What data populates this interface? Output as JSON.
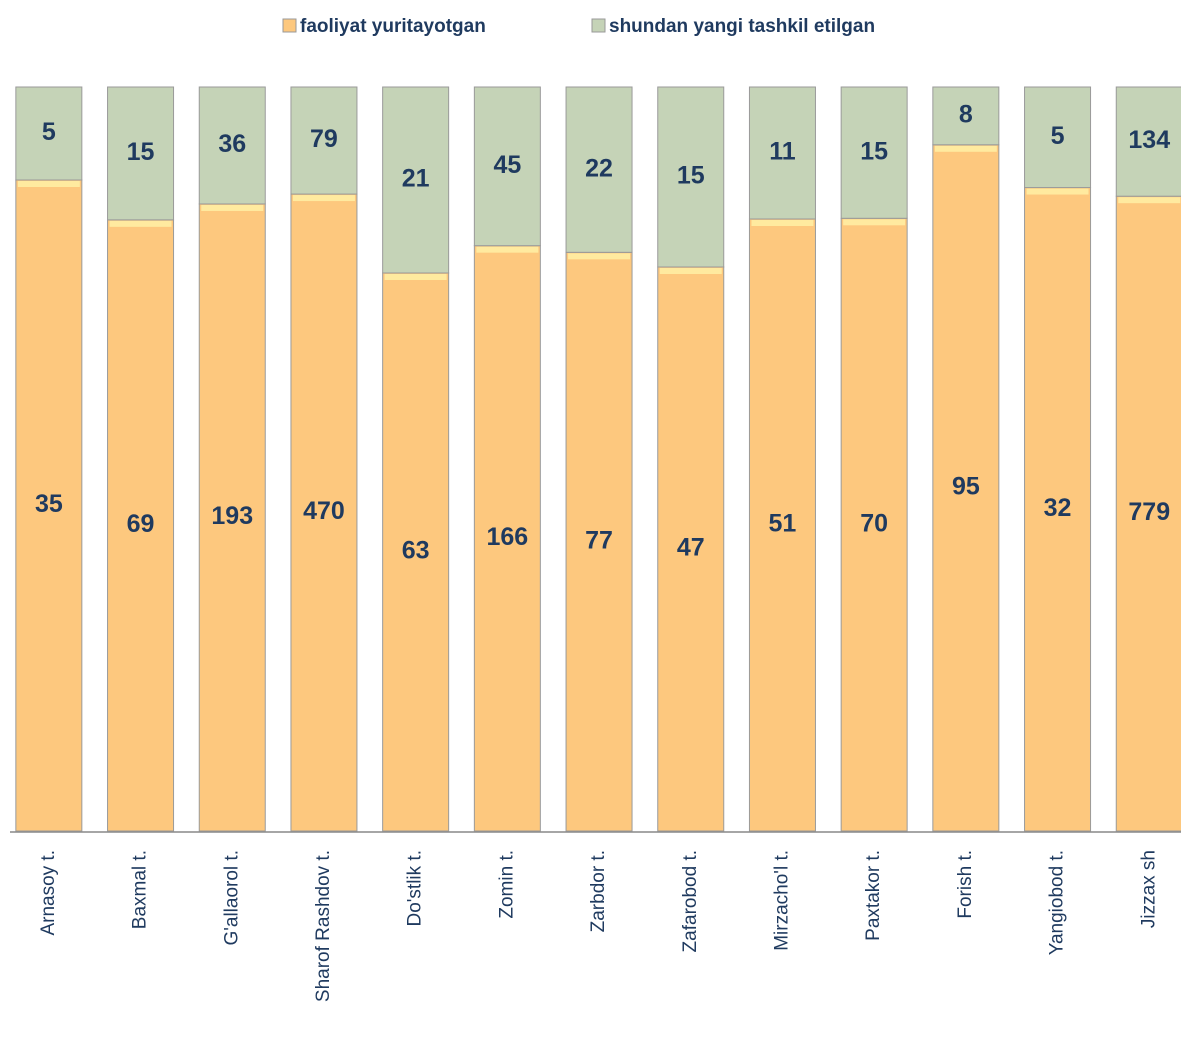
{
  "chart_data": {
    "type": "bar",
    "stacked": "percent",
    "categories": [
      "Arnasoy t.",
      "Baxmal t.",
      "G'allaorol t.",
      "Sharof Rashdov  t.",
      "Do'stlik t.",
      "Zomin t.",
      "Zarbdor t.",
      "Zafarobod t.",
      "Mirzacho'l t.",
      "Paxtakor t.",
      "Forish t.",
      "Yangiobod t.",
      "Jizzax sh"
    ],
    "series": [
      {
        "name": "faoliyat yuritayotgan",
        "color": "#fdc87e",
        "values": [
          35,
          69,
          193,
          470,
          63,
          166,
          77,
          47,
          51,
          70,
          95,
          32,
          779
        ]
      },
      {
        "name": "shundan yangi tashkil etilgan",
        "color": "#c5d3b7",
        "values": [
          5,
          15,
          36,
          79,
          21,
          45,
          22,
          15,
          11,
          15,
          8,
          5,
          134
        ]
      }
    ],
    "legend": "top"
  }
}
